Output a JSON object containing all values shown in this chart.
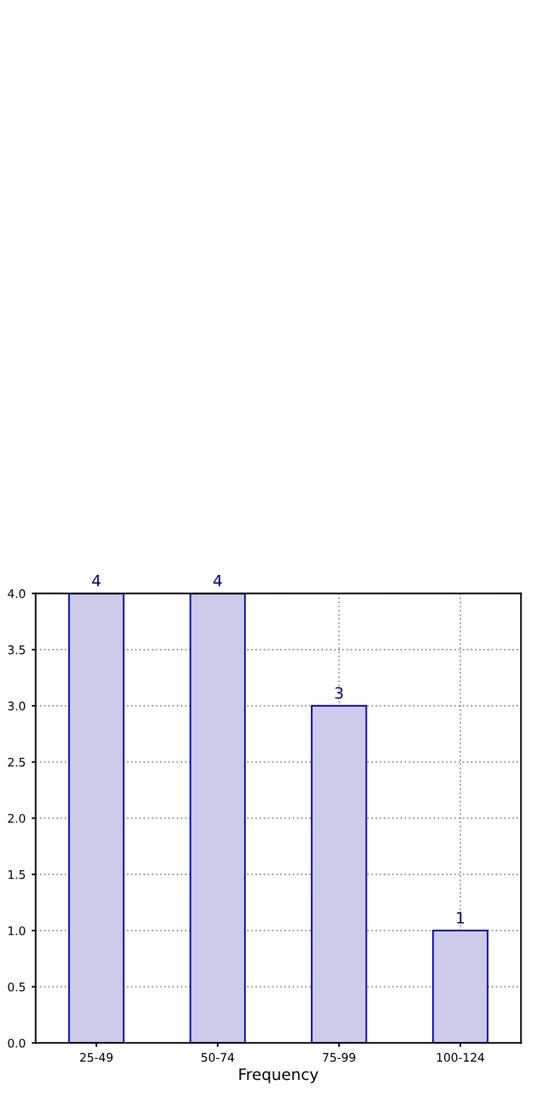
{
  "chart_data": {
    "type": "bar",
    "xlabel": "Frequency",
    "categories": [
      "25-49",
      "50-74",
      "75-99",
      "100-124"
    ],
    "values": [
      4,
      4,
      3,
      1
    ],
    "color": "#ccccea",
    "ylim": [
      0,
      4
    ],
    "yticks": [
      {
        "value": 0,
        "label": "0.0"
      },
      {
        "value": 0.5,
        "label": "0.5"
      },
      {
        "value": 1,
        "label": "1.0"
      },
      {
        "value": 1.5,
        "label": "1.5"
      },
      {
        "value": 2,
        "label": "2.0"
      },
      {
        "value": 2.5,
        "label": "2.5"
      },
      {
        "value": 3,
        "label": "3.0"
      },
      {
        "value": 3.5,
        "label": "3.5"
      },
      {
        "value": 4,
        "label": "4.0"
      }
    ],
    "grid": true,
    "data_labels": true
  }
}
